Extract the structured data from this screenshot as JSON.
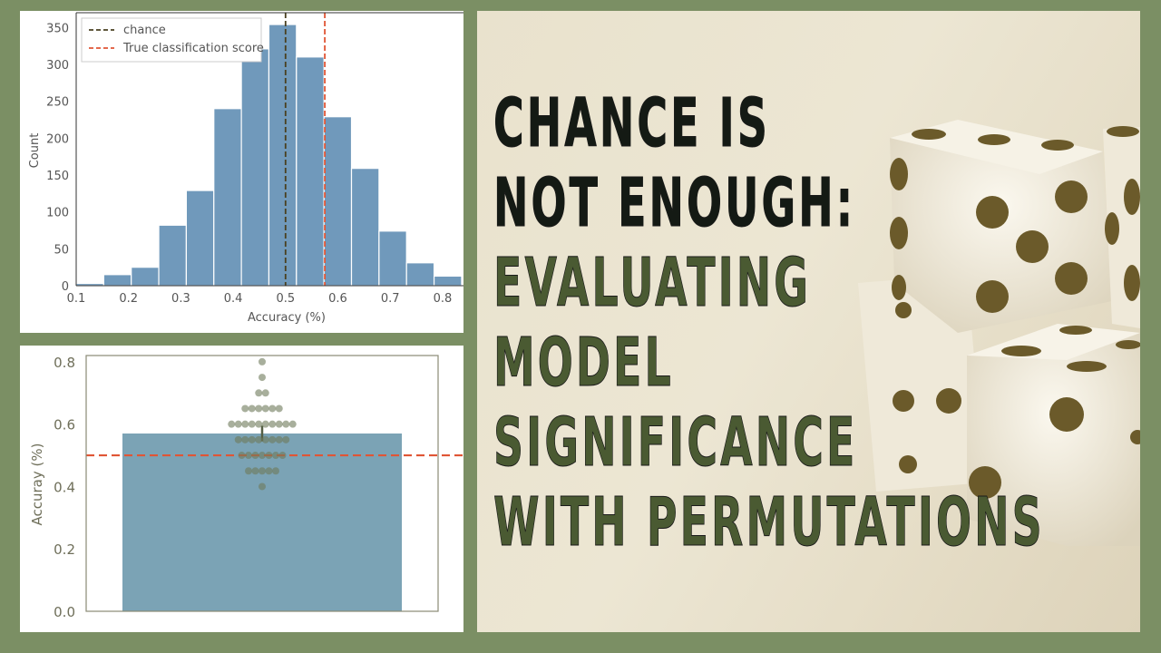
{
  "title": {
    "lines": [
      {
        "text": "CHANCE IS",
        "tone": "dark"
      },
      {
        "text": "NOT ENOUGH:",
        "tone": "dark"
      },
      {
        "text": "EVALUATING",
        "tone": "green"
      },
      {
        "text": "MODEL",
        "tone": "green"
      },
      {
        "text": "SIGNIFICANCE",
        "tone": "green"
      },
      {
        "text": "WITH PERMUTATIONS",
        "tone": "green"
      }
    ]
  },
  "colors": {
    "background": "#7b8f64",
    "bar_fill": "#7099bb",
    "bar2_fill": "#7ba3b5",
    "chance_line": "#4a4020",
    "score_line": "#e05535",
    "title_dark": "#141a14",
    "title_green": "#4a5a32",
    "dice_pip": "#6b5a2a",
    "swarm_dot": "#6e7a5a"
  },
  "chart_data": [
    {
      "type": "bar",
      "subtype": "histogram",
      "xlabel": "Accuracy (%)",
      "ylabel": "Count",
      "xlim": [
        0.1,
        0.84
      ],
      "ylim": [
        0,
        370
      ],
      "xticks": [
        "0.1",
        "0.2",
        "0.3",
        "0.4",
        "0.5",
        "0.6",
        "0.7",
        "0.8"
      ],
      "yticks": [
        "0",
        "50",
        "100",
        "150",
        "200",
        "250",
        "300",
        "350"
      ],
      "bin_edges": [
        0.1,
        0.1526,
        0.2052,
        0.2578,
        0.3104,
        0.363,
        0.4156,
        0.4682,
        0.5208,
        0.5734,
        0.626,
        0.6786,
        0.7312,
        0.7838,
        0.8364
      ],
      "values": [
        3,
        15,
        25,
        82,
        129,
        240,
        321,
        354,
        310,
        229,
        159,
        74,
        31,
        13
      ],
      "vlines": [
        {
          "x": 0.5,
          "name": "chance"
        },
        {
          "x": 0.575,
          "name": "True classification score"
        }
      ],
      "legend": {
        "position": "upper-left",
        "entries": [
          "chance",
          "True classification score"
        ]
      },
      "grid": false
    },
    {
      "type": "bar",
      "ylabel": "Accuray (%)",
      "ylim": [
        0,
        0.82
      ],
      "yticks": [
        "0.0",
        "0.2",
        "0.4",
        "0.6",
        "0.8"
      ],
      "bar_value": 0.57,
      "hline": 0.5,
      "error_bar": [
        0.545,
        0.595
      ],
      "swarm_values": [
        0.8,
        0.75,
        0.7,
        0.7,
        0.65,
        0.65,
        0.65,
        0.65,
        0.65,
        0.65,
        0.6,
        0.6,
        0.6,
        0.6,
        0.6,
        0.6,
        0.6,
        0.6,
        0.6,
        0.6,
        0.55,
        0.55,
        0.55,
        0.55,
        0.55,
        0.55,
        0.55,
        0.55,
        0.5,
        0.5,
        0.5,
        0.5,
        0.5,
        0.5,
        0.5,
        0.45,
        0.45,
        0.45,
        0.45,
        0.45,
        0.4
      ],
      "grid": false
    }
  ]
}
